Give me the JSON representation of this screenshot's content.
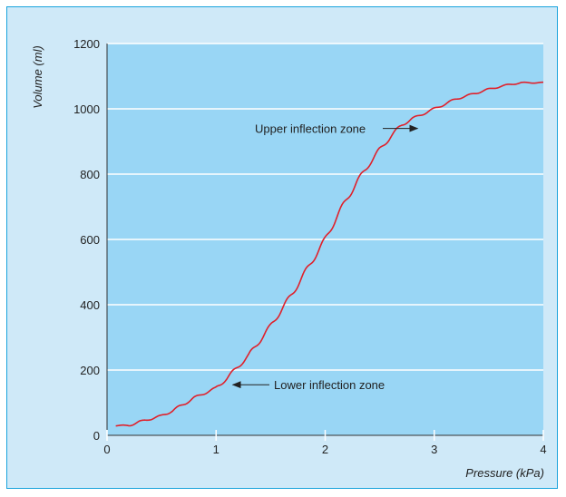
{
  "colors": {
    "frame_background": "#cfe9f8",
    "frame_border": "#1aa3dc",
    "plot_background": "#99d6f5",
    "gridline": "#ffffff",
    "curve": "#e0202a",
    "text": "#222222"
  },
  "chart_data": {
    "type": "line",
    "title": "",
    "xlabel": "Pressure (kPa)",
    "ylabel": "Volume (ml)",
    "xlim": [
      0,
      4
    ],
    "ylim": [
      0,
      1200
    ],
    "x_ticks": [
      "0",
      "1",
      "2",
      "3",
      "4"
    ],
    "y_ticks": [
      "0",
      "200",
      "400",
      "600",
      "800",
      "1000",
      "1200"
    ],
    "grid": "horizontal",
    "legend": "none",
    "series": [
      {
        "x": [
          0.08,
          0.2,
          0.3,
          0.4,
          0.5,
          0.6,
          0.7,
          0.8,
          0.9,
          1.0,
          1.1,
          1.2,
          1.3,
          1.4,
          1.5,
          1.6,
          1.7,
          1.8,
          1.9,
          2.0,
          2.1,
          2.2,
          2.3,
          2.4,
          2.5,
          2.6,
          2.7,
          2.8,
          2.9,
          3.0,
          3.1,
          3.2,
          3.3,
          3.4,
          3.5,
          3.6,
          3.7,
          3.8,
          3.9,
          4.0
        ],
        "y": [
          30,
          30,
          42,
          50,
          60,
          75,
          95,
          115,
          130,
          145,
          175,
          210,
          245,
          290,
          335,
          385,
          435,
          490,
          545,
          600,
          665,
          725,
          780,
          830,
          875,
          915,
          950,
          970,
          985,
          1000,
          1015,
          1030,
          1040,
          1050,
          1060,
          1068,
          1075,
          1080,
          1080,
          1080
        ]
      }
    ],
    "annotations": [
      {
        "text": "Upper inflection zone",
        "x": 2.88,
        "y": 940
      },
      {
        "text": "Lower inflection zone",
        "x": 1.12,
        "y": 155
      }
    ]
  }
}
